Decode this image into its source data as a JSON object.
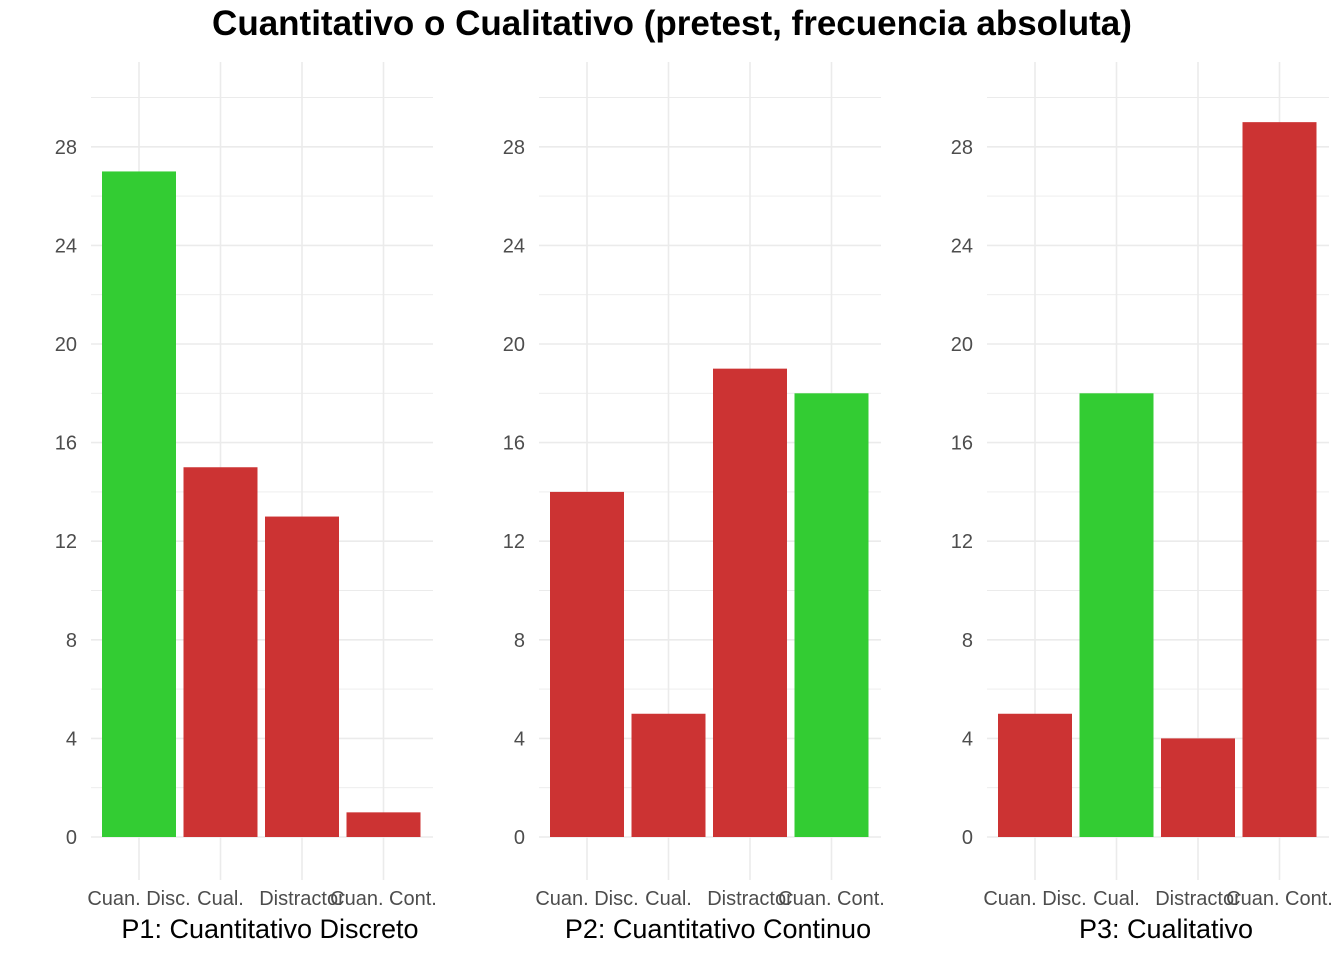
{
  "chart_data": {
    "type": "bar",
    "title": "Cuantitativo o Cualitativo (pretest, frecuencia absoluta)",
    "categories": [
      "Cuan. Disc.",
      "Cual.",
      "Distractor",
      "Cuan. Cont."
    ],
    "y_ticks": [
      0,
      4,
      8,
      12,
      16,
      20,
      24,
      28
    ],
    "ylim": [
      0,
      31
    ],
    "grid": true,
    "colors": {
      "correct": "#33cc33",
      "incorrect": "#cc3333",
      "grid": "#ebebeb"
    },
    "panels": [
      {
        "label": "P1: Cuantitativo Discreto",
        "values": [
          27,
          15,
          13,
          1
        ],
        "correct_index": 0
      },
      {
        "label": "P2: Cuantitativo Continuo",
        "values": [
          14,
          5,
          19,
          18
        ],
        "correct_index": 3
      },
      {
        "label": "P3: Cualitativo",
        "values": [
          5,
          18,
          4,
          29
        ],
        "correct_index": 1
      }
    ]
  }
}
